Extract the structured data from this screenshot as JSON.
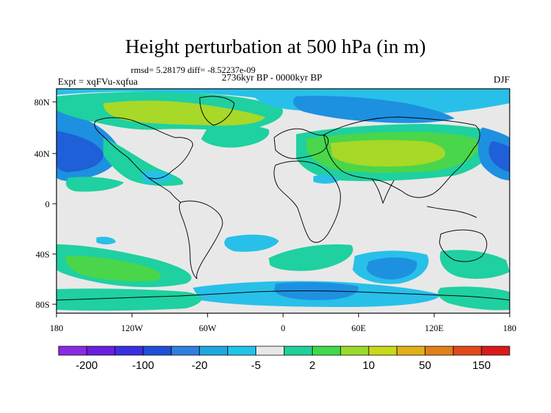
{
  "title": "Height perturbation at 500 hPa (in m)",
  "stats_line": "rmsd= 5.28179 diff= -8.52237e-09",
  "period_line": "2736kyr BP - 0000kyr BP",
  "experiment_label": "Expt = xqFVu-xqfua",
  "season_label": "DJF",
  "axes": {
    "x_ticks": [
      "180",
      "120W",
      "60W",
      "0",
      "60E",
      "120E",
      "180"
    ],
    "y_ticks": [
      "80N",
      "40N",
      "0",
      "40S",
      "80S"
    ]
  },
  "colorbar": {
    "labels": [
      "-200",
      "-100",
      "-20",
      "-5",
      "2",
      "10",
      "50",
      "150"
    ],
    "colors": [
      "#8a2be2",
      "#6a1fe0",
      "#3a2fe0",
      "#1f4fd8",
      "#2f7fe0",
      "#1fa8e0",
      "#22c3e8",
      "#e8e8e8",
      "#1fd09a",
      "#3fd94a",
      "#9ad92a",
      "#c8d81a",
      "#e0b01a",
      "#e0801a",
      "#e04a1a",
      "#d81a1a"
    ]
  },
  "colors": {
    "background": "#e8e8e8",
    "light_blue": "#28c0e8",
    "blue": "#1e90e0",
    "dark_blue": "#1f5fd8",
    "teal_green": "#1fd0a0",
    "green": "#4ad64a",
    "yellow_green": "#a8d828"
  }
}
